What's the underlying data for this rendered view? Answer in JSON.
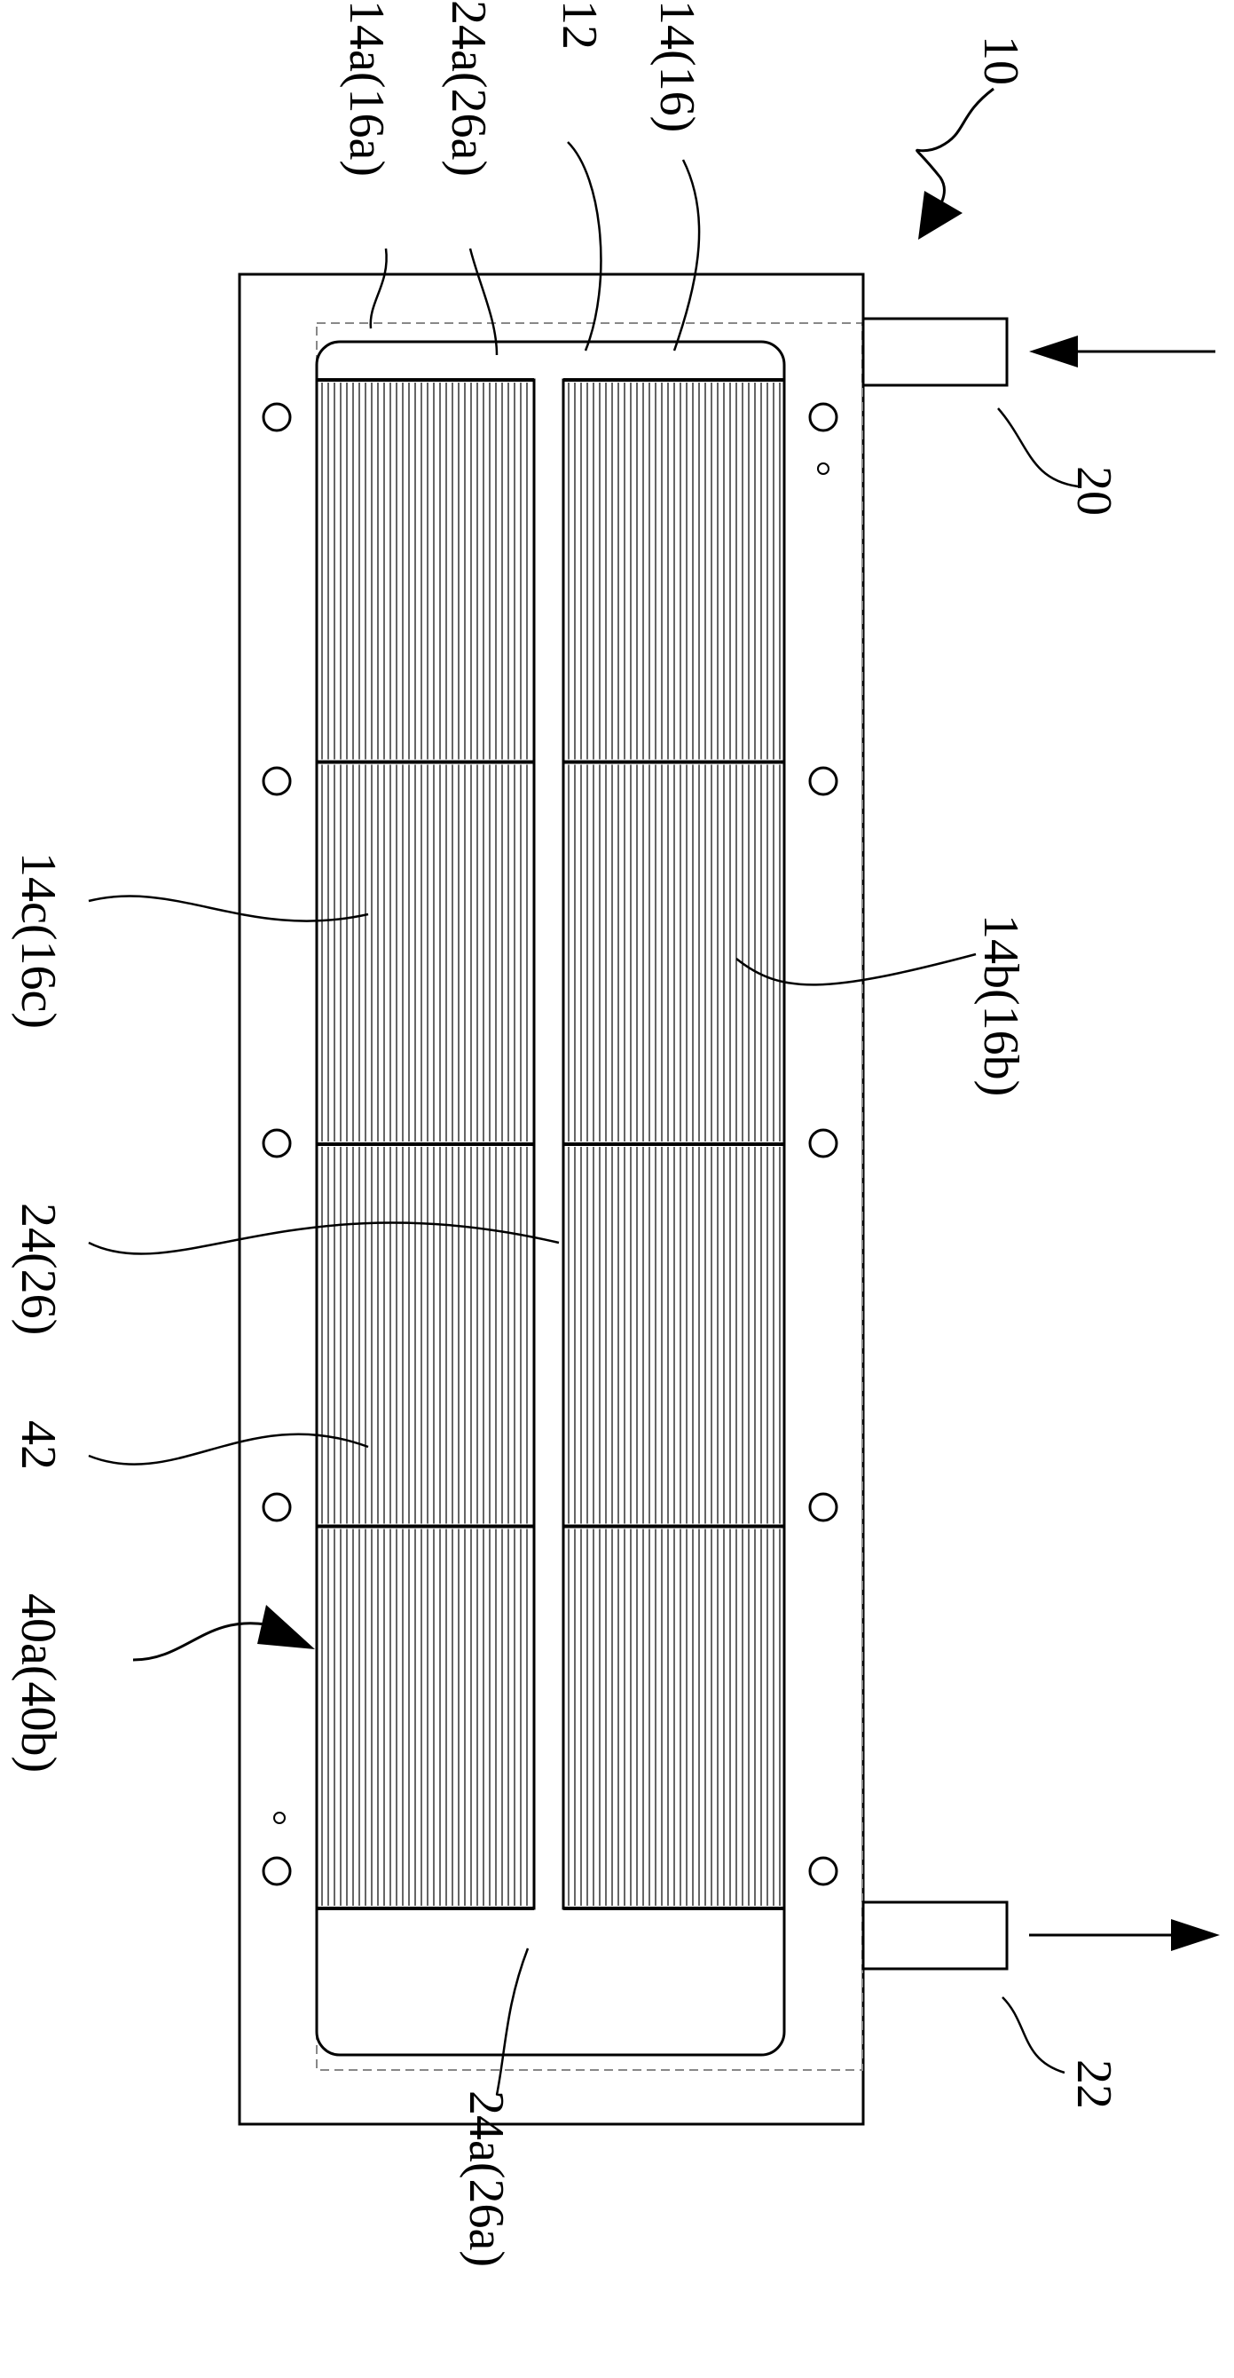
{
  "labels": {
    "assembly": "10",
    "inlet": "20",
    "outlet": "22",
    "top_end_zone": "14a(16a)",
    "top_header": "24a(26a)",
    "divider": "12",
    "chamber": "14(16)",
    "left_wall": "14c(16c)",
    "right_wall": "14b(16b)",
    "center_gap": "24(26)",
    "fin": "42",
    "fin_module": "40a(40b)",
    "bottom_header": "24a(26a)"
  },
  "structure": {
    "fin_columns": 2,
    "fin_rows": 4,
    "bolt_holes_per_side": 5,
    "inlet_flow": "in",
    "outlet_flow": "out"
  }
}
